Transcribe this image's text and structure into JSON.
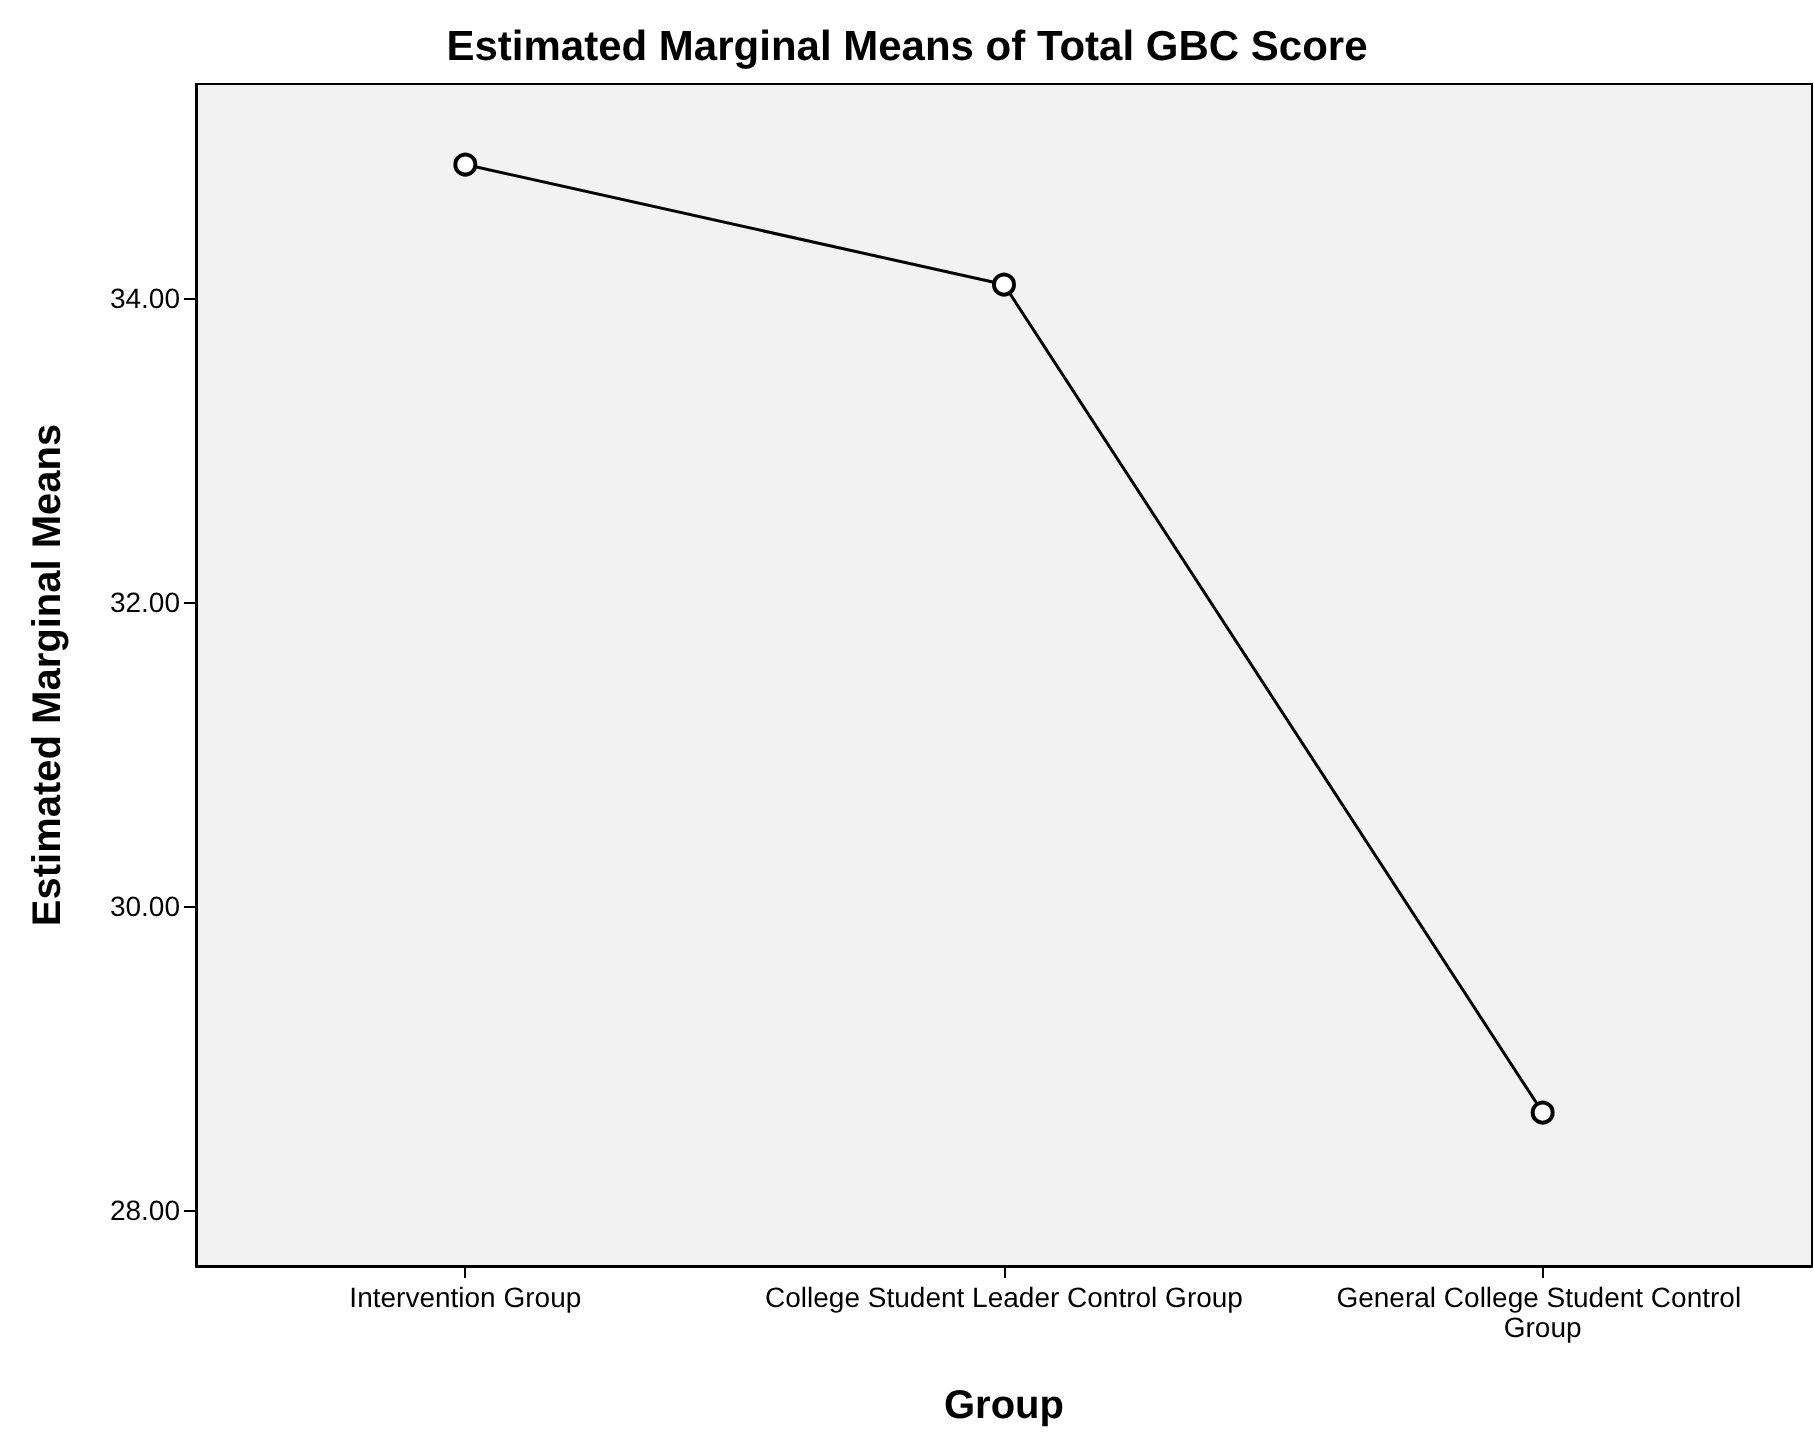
{
  "chart_data": {
    "type": "line",
    "title": "Estimated Marginal Means of Total GBC Score",
    "xlabel": "Group",
    "ylabel": "Estimated Marginal Means",
    "categories": [
      "Intervention Group",
      "College Student Leader Control Group",
      "General College Student Control Group"
    ],
    "series": [
      {
        "color": "#000000",
        "values": [
          34.88,
          34.09,
          28.64
        ]
      }
    ],
    "ylim": [
      27.63,
      35.41
    ],
    "yticks": [
      {
        "value": 28,
        "label": "28.00"
      },
      {
        "value": 30,
        "label": "30.00"
      },
      {
        "value": 32,
        "label": "32.00"
      },
      {
        "value": 34,
        "label": "34.00"
      }
    ],
    "marker": "circle",
    "line_style": "solid"
  }
}
